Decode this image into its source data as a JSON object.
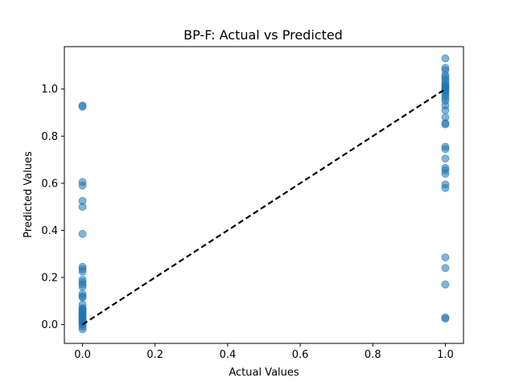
{
  "chart_data": {
    "type": "scatter",
    "title": "BP-F: Actual vs Predicted",
    "xlabel": "Actual Values",
    "ylabel": "Predicted Values",
    "xlim": [
      -0.05,
      1.05
    ],
    "ylim": [
      -0.08,
      1.18
    ],
    "x_ticks": [
      0.0,
      0.2,
      0.4,
      0.6,
      0.8,
      1.0
    ],
    "x_tick_labels": [
      "0.0",
      "0.2",
      "0.4",
      "0.6",
      "0.8",
      "1.0"
    ],
    "y_ticks": [
      0.0,
      0.2,
      0.4,
      0.6,
      0.8,
      1.0
    ],
    "y_tick_labels": [
      "0.0",
      "0.2",
      "0.4",
      "0.6",
      "0.8",
      "1.0"
    ],
    "grid": false,
    "point_color": "#1f77b4",
    "point_alpha": 0.55,
    "reference_line": {
      "from": [
        0,
        0
      ],
      "to": [
        1,
        1
      ],
      "color": "#000000",
      "style": "dashed"
    },
    "points": [
      [
        0,
        0.93
      ],
      [
        0,
        0.925
      ],
      [
        0,
        0.605
      ],
      [
        0,
        0.59
      ],
      [
        0,
        0.525
      ],
      [
        0,
        0.5
      ],
      [
        0,
        0.385
      ],
      [
        0,
        0.245
      ],
      [
        0,
        0.235
      ],
      [
        0,
        0.225
      ],
      [
        0,
        0.19
      ],
      [
        0,
        0.18
      ],
      [
        0,
        0.17
      ],
      [
        0,
        0.16
      ],
      [
        0,
        0.13
      ],
      [
        0,
        0.12
      ],
      [
        0,
        0.115
      ],
      [
        0,
        0.085
      ],
      [
        0,
        0.07
      ],
      [
        0,
        0.065
      ],
      [
        0,
        0.06
      ],
      [
        0,
        0.055
      ],
      [
        0,
        0.05
      ],
      [
        0,
        0.045
      ],
      [
        0,
        0.04
      ],
      [
        0,
        0.035
      ],
      [
        0,
        0.03
      ],
      [
        0,
        0.025
      ],
      [
        0,
        0.02
      ],
      [
        0,
        0.015
      ],
      [
        0,
        0.01
      ],
      [
        0,
        0.005
      ],
      [
        0,
        0.0
      ],
      [
        0,
        -0.01
      ],
      [
        0,
        -0.02
      ],
      [
        1,
        1.13
      ],
      [
        1,
        1.09
      ],
      [
        1,
        1.08
      ],
      [
        1,
        1.06
      ],
      [
        1,
        1.05
      ],
      [
        1,
        1.04
      ],
      [
        1,
        1.03
      ],
      [
        1,
        1.02
      ],
      [
        1,
        1.015
      ],
      [
        1,
        1.01
      ],
      [
        1,
        1.005
      ],
      [
        1,
        1.0
      ],
      [
        1,
        0.995
      ],
      [
        1,
        0.99
      ],
      [
        1,
        0.98
      ],
      [
        1,
        0.97
      ],
      [
        1,
        0.96
      ],
      [
        1,
        0.95
      ],
      [
        1,
        0.93
      ],
      [
        1,
        0.91
      ],
      [
        1,
        0.88
      ],
      [
        1,
        0.855
      ],
      [
        1,
        0.85
      ],
      [
        1,
        0.755
      ],
      [
        1,
        0.745
      ],
      [
        1,
        0.705
      ],
      [
        1,
        0.665
      ],
      [
        1,
        0.655
      ],
      [
        1,
        0.64
      ],
      [
        1,
        0.595
      ],
      [
        1,
        0.58
      ],
      [
        1,
        0.285
      ],
      [
        1,
        0.24
      ],
      [
        1,
        0.17
      ],
      [
        1,
        0.03
      ],
      [
        1,
        0.025
      ]
    ]
  }
}
